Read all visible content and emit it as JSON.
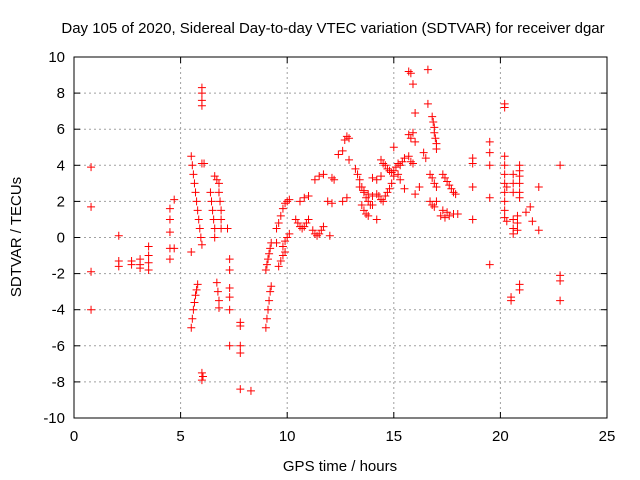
{
  "chart_data": {
    "type": "scatter",
    "title": "Day 105 of 2020, Sidereal Day-to-day VTEC variation (SDTVAR) for receiver dgar",
    "xlabel": "GPS time / hours",
    "ylabel": "SDTVAR / TECUs",
    "xlim": [
      0,
      25
    ],
    "ylim": [
      -10,
      10
    ],
    "xticks": [
      0,
      5,
      10,
      15,
      20,
      25
    ],
    "yticks": [
      -10,
      -8,
      -6,
      -4,
      -2,
      0,
      2,
      4,
      6,
      8,
      10
    ],
    "xtick_labels": [
      "0",
      "5",
      "10",
      "15",
      "20",
      "25"
    ],
    "ytick_labels": [
      "-10",
      "-8",
      "-6",
      "-4",
      "-2",
      "0",
      "2",
      "4",
      "6",
      "8",
      "10"
    ],
    "grid": true,
    "marker": "+",
    "marker_color": "#ff0000",
    "series": [
      {
        "name": "SDTVAR",
        "color": "#ff0000",
        "points": [
          [
            0.8,
            3.9
          ],
          [
            0.8,
            1.7
          ],
          [
            0.8,
            -1.9
          ],
          [
            0.8,
            -4.0
          ],
          [
            2.1,
            0.1
          ],
          [
            2.1,
            -1.3
          ],
          [
            2.1,
            -1.6
          ],
          [
            2.7,
            -1.3
          ],
          [
            2.7,
            -1.5
          ],
          [
            3.1,
            -1.2
          ],
          [
            3.1,
            -1.5
          ],
          [
            3.1,
            -1.7
          ],
          [
            3.5,
            -0.5
          ],
          [
            3.5,
            -1.0
          ],
          [
            3.5,
            -1.4
          ],
          [
            3.5,
            -1.8
          ],
          [
            4.5,
            1.6
          ],
          [
            4.5,
            1.0
          ],
          [
            4.5,
            0.3
          ],
          [
            4.5,
            -0.6
          ],
          [
            4.5,
            -1.2
          ],
          [
            4.7,
            2.1
          ],
          [
            4.7,
            -0.6
          ],
          [
            5.5,
            4.5
          ],
          [
            5.55,
            4.0
          ],
          [
            5.6,
            3.5
          ],
          [
            5.65,
            3.0
          ],
          [
            5.7,
            2.5
          ],
          [
            5.75,
            2.0
          ],
          [
            5.8,
            1.5
          ],
          [
            5.85,
            1.0
          ],
          [
            5.5,
            -5.0
          ],
          [
            5.55,
            -4.5
          ],
          [
            5.6,
            -4.0
          ],
          [
            5.65,
            -3.6
          ],
          [
            5.7,
            -3.2
          ],
          [
            5.75,
            -2.9
          ],
          [
            5.8,
            -2.6
          ],
          [
            5.5,
            -0.8
          ],
          [
            6.0,
            8.3
          ],
          [
            6.0,
            8.0
          ],
          [
            6.0,
            7.6
          ],
          [
            6.0,
            7.3
          ],
          [
            6.0,
            4.1
          ],
          [
            6.1,
            4.1
          ],
          [
            5.9,
            0.5
          ],
          [
            5.95,
            0.0
          ],
          [
            6.0,
            -0.4
          ],
          [
            6.0,
            -7.5
          ],
          [
            6.05,
            -7.7
          ],
          [
            6.0,
            -7.9
          ],
          [
            6.4,
            2.5
          ],
          [
            6.45,
            2.0
          ],
          [
            6.5,
            1.5
          ],
          [
            6.55,
            1.0
          ],
          [
            6.6,
            0.5
          ],
          [
            6.6,
            0.0
          ],
          [
            6.6,
            3.4
          ],
          [
            6.7,
            3.2
          ],
          [
            6.8,
            3.0
          ],
          [
            6.8,
            2.5
          ],
          [
            6.85,
            2.0
          ],
          [
            6.9,
            1.5
          ],
          [
            6.9,
            1.0
          ],
          [
            6.9,
            0.5
          ],
          [
            6.7,
            -2.5
          ],
          [
            6.75,
            -3.0
          ],
          [
            6.8,
            -3.5
          ],
          [
            6.8,
            -3.9
          ],
          [
            7.2,
            0.5
          ],
          [
            7.3,
            -1.2
          ],
          [
            7.3,
            -1.8
          ],
          [
            7.3,
            -2.8
          ],
          [
            7.3,
            -3.3
          ],
          [
            7.3,
            -4.0
          ],
          [
            7.3,
            -6.0
          ],
          [
            7.8,
            -4.7
          ],
          [
            7.8,
            -4.9
          ],
          [
            7.8,
            -6.0
          ],
          [
            7.8,
            -6.4
          ],
          [
            7.8,
            -8.4
          ],
          [
            8.3,
            -8.5
          ],
          [
            9.0,
            -1.8
          ],
          [
            9.05,
            -1.5
          ],
          [
            9.1,
            -1.2
          ],
          [
            9.15,
            -0.9
          ],
          [
            9.2,
            -0.6
          ],
          [
            9.25,
            -0.3
          ],
          [
            9.0,
            -5.0
          ],
          [
            9.05,
            -4.5
          ],
          [
            9.1,
            -4.0
          ],
          [
            9.15,
            -3.5
          ],
          [
            9.2,
            -3.0
          ],
          [
            9.25,
            -2.7
          ],
          [
            9.5,
            -0.3
          ],
          [
            9.5,
            0.5
          ],
          [
            9.6,
            0.8
          ],
          [
            9.7,
            1.2
          ],
          [
            9.8,
            1.6
          ],
          [
            9.9,
            1.9
          ],
          [
            10.0,
            2.0
          ],
          [
            10.1,
            2.1
          ],
          [
            9.8,
            -0.5
          ],
          [
            9.9,
            -0.2
          ],
          [
            10.0,
            0.0
          ],
          [
            10.1,
            0.2
          ],
          [
            9.6,
            -1.6
          ],
          [
            9.7,
            -1.3
          ],
          [
            9.8,
            -1.0
          ],
          [
            9.9,
            -0.8
          ],
          [
            10.4,
            1.0
          ],
          [
            10.5,
            0.8
          ],
          [
            10.6,
            0.6
          ],
          [
            10.7,
            0.5
          ],
          [
            10.8,
            0.6
          ],
          [
            10.9,
            0.8
          ],
          [
            11.0,
            1.0
          ],
          [
            10.6,
            2.0
          ],
          [
            10.8,
            2.2
          ],
          [
            11.0,
            2.3
          ],
          [
            11.2,
            0.4
          ],
          [
            11.3,
            0.2
          ],
          [
            11.4,
            0.1
          ],
          [
            11.5,
            0.2
          ],
          [
            11.6,
            0.4
          ],
          [
            11.7,
            0.6
          ],
          [
            11.3,
            3.2
          ],
          [
            11.5,
            3.4
          ],
          [
            11.7,
            3.5
          ],
          [
            11.9,
            2.0
          ],
          [
            12.0,
            0.1
          ],
          [
            12.1,
            1.9
          ],
          [
            12.1,
            3.3
          ],
          [
            12.2,
            3.2
          ],
          [
            12.4,
            4.6
          ],
          [
            12.6,
            4.8
          ],
          [
            12.6,
            2.0
          ],
          [
            12.8,
            2.2
          ],
          [
            12.7,
            5.4
          ],
          [
            12.8,
            5.6
          ],
          [
            12.9,
            5.5
          ],
          [
            12.9,
            4.3
          ],
          [
            13.2,
            3.8
          ],
          [
            13.3,
            3.5
          ],
          [
            13.4,
            3.2
          ],
          [
            13.5,
            2.8
          ],
          [
            13.6,
            2.5
          ],
          [
            13.7,
            2.2
          ],
          [
            13.8,
            2.0
          ],
          [
            13.9,
            1.8
          ],
          [
            13.4,
            2.8
          ],
          [
            13.6,
            2.6
          ],
          [
            13.8,
            2.4
          ],
          [
            14.0,
            2.3
          ],
          [
            14.2,
            2.4
          ],
          [
            13.5,
            1.8
          ],
          [
            13.6,
            1.5
          ],
          [
            13.7,
            1.3
          ],
          [
            13.8,
            1.2
          ],
          [
            14.0,
            1.8
          ],
          [
            14.2,
            1.0
          ],
          [
            14.0,
            3.3
          ],
          [
            14.2,
            3.2
          ],
          [
            14.4,
            3.4
          ],
          [
            14.4,
            4.3
          ],
          [
            14.5,
            4.1
          ],
          [
            14.3,
            2.3
          ],
          [
            14.4,
            2.1
          ],
          [
            14.5,
            2.0
          ],
          [
            14.6,
            4.0
          ],
          [
            14.7,
            3.8
          ],
          [
            14.8,
            3.7
          ],
          [
            14.9,
            3.6
          ],
          [
            15.0,
            3.7
          ],
          [
            15.1,
            3.9
          ],
          [
            15.2,
            4.1
          ],
          [
            14.6,
            2.3
          ],
          [
            14.7,
            2.5
          ],
          [
            14.8,
            2.7
          ],
          [
            14.9,
            3.0
          ],
          [
            15.0,
            3.4
          ],
          [
            15.2,
            3.5
          ],
          [
            15.3,
            4.0
          ],
          [
            15.4,
            4.2
          ],
          [
            15.5,
            4.4
          ],
          [
            15.0,
            5.0
          ],
          [
            15.3,
            3.2
          ],
          [
            15.5,
            2.7
          ],
          [
            15.7,
            4.5
          ],
          [
            15.8,
            4.2
          ],
          [
            15.9,
            4.1
          ],
          [
            15.7,
            5.7
          ],
          [
            15.8,
            5.5
          ],
          [
            15.9,
            5.8
          ],
          [
            16.0,
            5.3
          ],
          [
            15.7,
            9.2
          ],
          [
            15.8,
            9.1
          ],
          [
            15.9,
            8.5
          ],
          [
            16.0,
            6.9
          ],
          [
            16.0,
            2.4
          ],
          [
            16.2,
            2.8
          ],
          [
            16.4,
            4.7
          ],
          [
            16.5,
            4.4
          ],
          [
            16.6,
            9.3
          ],
          [
            16.6,
            7.4
          ],
          [
            16.8,
            6.7
          ],
          [
            16.85,
            6.4
          ],
          [
            16.9,
            6.1
          ],
          [
            16.9,
            5.8
          ],
          [
            16.95,
            5.5
          ],
          [
            17.0,
            5.2
          ],
          [
            17.0,
            4.9
          ],
          [
            16.7,
            2.0
          ],
          [
            16.8,
            1.8
          ],
          [
            16.9,
            1.7
          ],
          [
            17.0,
            2.0
          ],
          [
            16.7,
            3.5
          ],
          [
            16.8,
            3.3
          ],
          [
            16.9,
            3.0
          ],
          [
            17.0,
            2.8
          ],
          [
            17.3,
            3.5
          ],
          [
            17.4,
            3.3
          ],
          [
            17.5,
            3.1
          ],
          [
            17.6,
            2.9
          ],
          [
            17.7,
            2.7
          ],
          [
            17.8,
            2.5
          ],
          [
            17.9,
            2.4
          ],
          [
            17.2,
            1.2
          ],
          [
            17.4,
            1.1
          ],
          [
            17.6,
            1.2
          ],
          [
            17.8,
            1.3
          ],
          [
            18.0,
            1.3
          ],
          [
            17.3,
            1.5
          ],
          [
            17.5,
            1.4
          ],
          [
            18.7,
            4.4
          ],
          [
            18.7,
            4.1
          ],
          [
            18.7,
            2.8
          ],
          [
            18.7,
            1.0
          ],
          [
            19.5,
            5.3
          ],
          [
            19.5,
            4.7
          ],
          [
            19.5,
            4.0
          ],
          [
            19.5,
            2.2
          ],
          [
            19.5,
            -1.5
          ],
          [
            20.2,
            7.4
          ],
          [
            20.2,
            7.2
          ],
          [
            20.2,
            4.5
          ],
          [
            20.2,
            4.0
          ],
          [
            20.2,
            3.5
          ],
          [
            20.2,
            3.0
          ],
          [
            20.2,
            2.5
          ],
          [
            20.2,
            2.0
          ],
          [
            20.2,
            1.5
          ],
          [
            20.2,
            1.1
          ],
          [
            20.3,
            0.9
          ],
          [
            20.3,
            2.8
          ],
          [
            20.5,
            -3.3
          ],
          [
            20.5,
            -3.5
          ],
          [
            20.6,
            3.5
          ],
          [
            20.6,
            3.0
          ],
          [
            20.6,
            2.5
          ],
          [
            20.6,
            1.0
          ],
          [
            20.6,
            0.5
          ],
          [
            20.6,
            0.2
          ],
          [
            20.8,
            1.2
          ],
          [
            20.8,
            0.8
          ],
          [
            20.8,
            0.4
          ],
          [
            20.9,
            4.0
          ],
          [
            20.9,
            3.7
          ],
          [
            20.9,
            3.4
          ],
          [
            20.9,
            3.0
          ],
          [
            20.9,
            2.2
          ],
          [
            20.9,
            2.5
          ],
          [
            20.9,
            -2.6
          ],
          [
            20.9,
            -2.9
          ],
          [
            21.2,
            1.4
          ],
          [
            21.4,
            1.7
          ],
          [
            21.5,
            0.9
          ],
          [
            21.8,
            2.8
          ],
          [
            21.8,
            0.4
          ],
          [
            22.8,
            4.0
          ],
          [
            22.8,
            -2.1
          ],
          [
            22.8,
            -2.4
          ],
          [
            22.8,
            -3.5
          ]
        ]
      }
    ]
  }
}
